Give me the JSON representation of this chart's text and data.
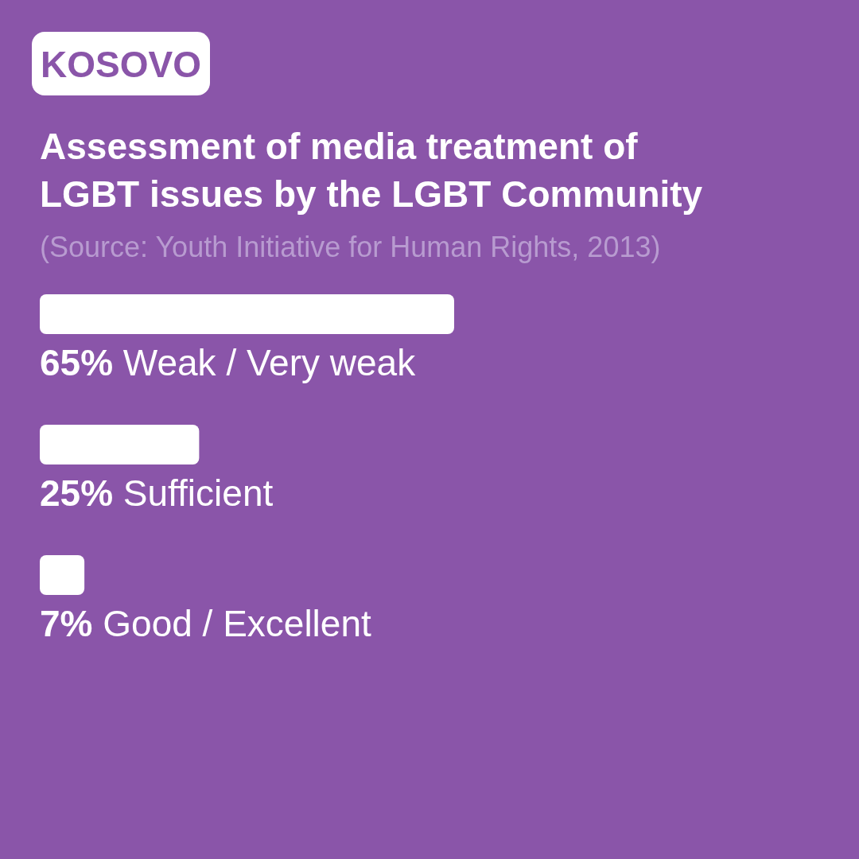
{
  "chart_data": {
    "type": "bar",
    "orientation": "horizontal",
    "title": "Assessment of media treatment of LGBT issues by the LGBT Community",
    "annotations": [
      "KOSOVO",
      "(Source: Youth Initiative for Human Rights, 2013)"
    ],
    "categories": [
      "Weak / Very weak",
      "Sufficient",
      "Good / Excellent"
    ],
    "values": [
      65,
      25,
      7
    ],
    "value_labels": [
      "65%",
      "25%",
      "7%"
    ],
    "color": "#ffffff"
  }
}
